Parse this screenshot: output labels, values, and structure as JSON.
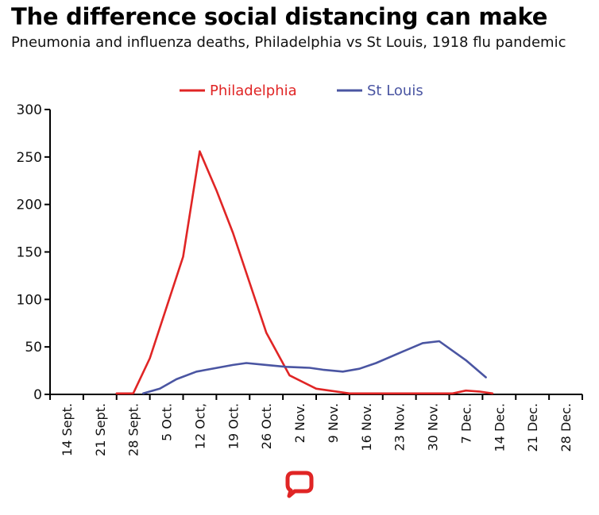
{
  "header": {
    "title": "The difference social distancing can make",
    "subtitle": "Pneumonia and influenza deaths, Philadelphia vs St Louis, 1918 flu pandemic"
  },
  "colors": {
    "philadelphia": "#e02525",
    "st_louis": "#4a55a2",
    "axis": "#000000",
    "logo": "#e02525"
  },
  "logo": {
    "icon": "speech-bubble-logo-icon"
  },
  "chart_data": {
    "type": "line",
    "title": "The difference social distancing can make",
    "subtitle": "Pneumonia and influenza deaths, Philadelphia vs St Louis, 1918 flu pandemic",
    "xlabel": "",
    "ylabel": "",
    "ylim": [
      0,
      300
    ],
    "yticks": [
      0,
      50,
      100,
      150,
      200,
      250,
      300
    ],
    "grid": false,
    "legend": "top-center",
    "categories": [
      "14 Sept.",
      "21 Sept.",
      "28 Sept.",
      "5 Oct.",
      "12 Oct,",
      "19 Oct.",
      "26 Oct.",
      "2 Nov.",
      "9 Nov.",
      "16 Nov.",
      "23 Nov.",
      "30 Nov.",
      "7 Dec.",
      "14 Dec.",
      "21 Dec.",
      "28 Dec."
    ],
    "series": [
      {
        "name": "Philadelphia",
        "color": "#e02525",
        "points": [
          [
            1.5,
            1
          ],
          [
            2,
            1
          ],
          [
            2.5,
            38
          ],
          [
            3.5,
            145
          ],
          [
            4,
            256
          ],
          [
            4.5,
            215
          ],
          [
            5,
            170
          ],
          [
            6,
            65
          ],
          [
            6.7,
            20
          ],
          [
            7.5,
            6
          ],
          [
            8.5,
            1
          ],
          [
            10,
            1
          ],
          [
            11.6,
            1
          ],
          [
            12,
            4
          ],
          [
            12.4,
            3
          ],
          [
            12.8,
            1
          ]
        ]
      },
      {
        "name": "St Louis",
        "color": "#4a55a2",
        "points": [
          [
            2.3,
            1
          ],
          [
            2.8,
            6
          ],
          [
            3.3,
            16
          ],
          [
            3.9,
            24
          ],
          [
            5.0,
            31
          ],
          [
            5.4,
            33
          ],
          [
            6.0,
            31
          ],
          [
            6.6,
            29
          ],
          [
            7.3,
            28
          ],
          [
            7.7,
            26
          ],
          [
            8.3,
            24
          ],
          [
            8.8,
            27
          ],
          [
            9.3,
            33
          ],
          [
            10.1,
            45
          ],
          [
            10.7,
            54
          ],
          [
            11.2,
            56
          ],
          [
            12.0,
            36
          ],
          [
            12.6,
            18
          ]
        ]
      }
    ]
  }
}
